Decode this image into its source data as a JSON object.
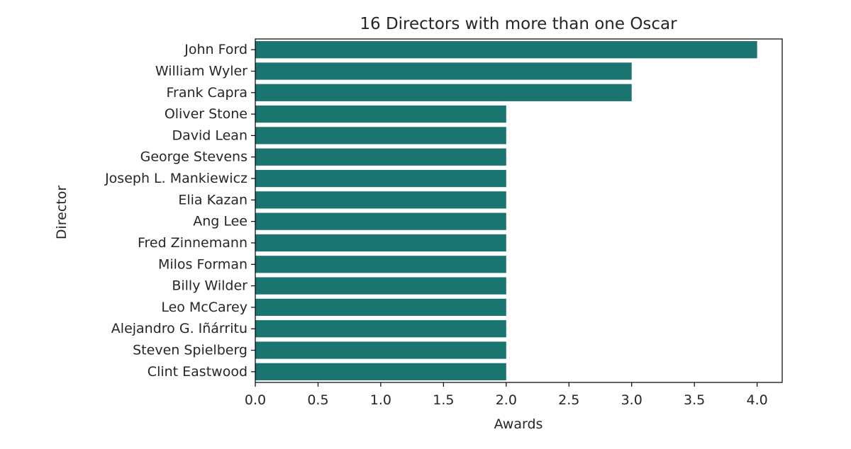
{
  "chart_data": {
    "type": "bar",
    "orientation": "horizontal",
    "title": "16 Directors with more than one Oscar",
    "xlabel": "Awards",
    "ylabel": "Director",
    "categories": [
      "John Ford",
      "William Wyler",
      "Frank Capra",
      "Oliver Stone",
      "David Lean",
      "George Stevens",
      "Joseph L. Mankiewicz",
      "Elia Kazan",
      "Ang Lee",
      "Fred Zinnemann",
      "Milos Forman",
      "Billy Wilder",
      "Leo McCarey",
      "Alejandro G. Iñárritu",
      "Steven Spielberg",
      "Clint Eastwood"
    ],
    "values": [
      4,
      3,
      3,
      2,
      2,
      2,
      2,
      2,
      2,
      2,
      2,
      2,
      2,
      2,
      2,
      2
    ],
    "xlim": [
      0,
      4.2
    ],
    "xticks": [
      0.0,
      0.5,
      1.0,
      1.5,
      2.0,
      2.5,
      3.0,
      3.5,
      4.0
    ],
    "xtick_labels": [
      "0.0",
      "0.5",
      "1.0",
      "1.5",
      "2.0",
      "2.5",
      "3.0",
      "3.5",
      "4.0"
    ],
    "grid": false,
    "bar_color": "#1a7470"
  }
}
